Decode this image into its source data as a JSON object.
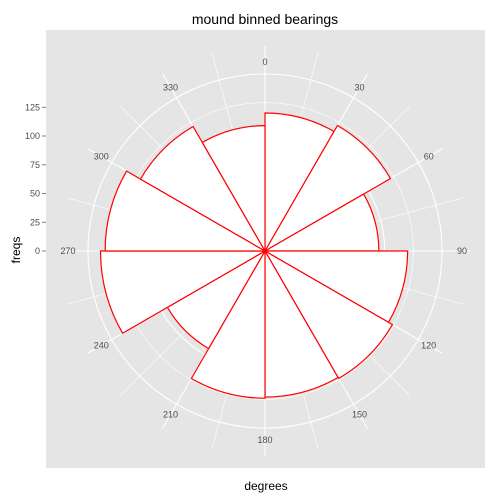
{
  "chart_data": {
    "type": "bar",
    "coord": "polar",
    "title": "mound binned bearings",
    "xlabel": "degrees",
    "ylabel": "freqs",
    "x_ticks": [
      "0",
      "30",
      "60",
      "90",
      "120",
      "150",
      "180",
      "210",
      "240",
      "270",
      "300",
      "330"
    ],
    "y_ticks": [
      "0",
      "25",
      "50",
      "75",
      "100",
      "125"
    ],
    "ylim": [
      0,
      143
    ],
    "bin_width_degrees": 30,
    "bins": [
      {
        "start": 0,
        "end": 30,
        "value": 120
      },
      {
        "start": 30,
        "end": 60,
        "value": 126
      },
      {
        "start": 60,
        "end": 90,
        "value": 99
      },
      {
        "start": 90,
        "end": 120,
        "value": 124
      },
      {
        "start": 120,
        "end": 150,
        "value": 128
      },
      {
        "start": 150,
        "end": 180,
        "value": 127
      },
      {
        "start": 180,
        "end": 210,
        "value": 128
      },
      {
        "start": 210,
        "end": 240,
        "value": 98
      },
      {
        "start": 240,
        "end": 270,
        "value": 143
      },
      {
        "start": 270,
        "end": 300,
        "value": 139
      },
      {
        "start": 300,
        "end": 330,
        "value": 125
      },
      {
        "start": 330,
        "end": 360,
        "value": 109
      }
    ],
    "grid": true,
    "colors": {
      "panel_background": "#e5e5e5",
      "grid": "#ffffff",
      "bar_fill": "#ffffff",
      "bar_outline": "#ff0000"
    }
  }
}
